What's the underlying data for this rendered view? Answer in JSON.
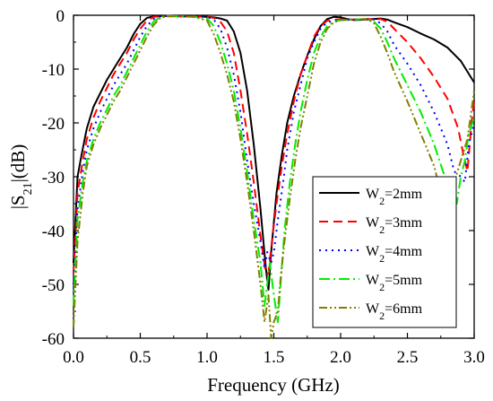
{
  "chart_data": {
    "type": "line",
    "title": "",
    "xlabel": "Frequency (GHz)",
    "ylabel": "|S21|(dB)",
    "ylabel_base": "|S",
    "ylabel_sub": "21",
    "ylabel_rest": "|(dB)",
    "xlim": [
      0.0,
      3.0
    ],
    "ylim": [
      -60,
      0
    ],
    "xticks": [
      0.0,
      0.5,
      1.0,
      1.5,
      2.0,
      2.5,
      3.0
    ],
    "xtick_labels": [
      "0.0",
      "0.5",
      "1.0",
      "1.5",
      "2.0",
      "2.5",
      "3.0"
    ],
    "yticks": [
      0,
      -10,
      -20,
      -30,
      -40,
      -50,
      -60
    ],
    "ytick_labels": [
      "0",
      "-10",
      "-20",
      "-30",
      "-40",
      "-50",
      "-60"
    ],
    "grid": false,
    "legend_position": "right",
    "series": [
      {
        "name": "W2=2mm",
        "legend_base": "W",
        "legend_sub": "2",
        "legend_rest": "=2mm",
        "color": "#000000",
        "dash": "",
        "points": [
          [
            0.0,
            -46
          ],
          [
            0.03,
            -30
          ],
          [
            0.06,
            -26
          ],
          [
            0.1,
            -21
          ],
          [
            0.15,
            -17
          ],
          [
            0.2,
            -14.5
          ],
          [
            0.25,
            -12
          ],
          [
            0.3,
            -10
          ],
          [
            0.35,
            -8
          ],
          [
            0.4,
            -6
          ],
          [
            0.45,
            -3.5
          ],
          [
            0.5,
            -1.6
          ],
          [
            0.55,
            -0.5
          ],
          [
            0.6,
            -0.2
          ],
          [
            0.7,
            -0.1
          ],
          [
            0.8,
            -0.2
          ],
          [
            0.9,
            -0.2
          ],
          [
            1.0,
            -0.3
          ],
          [
            1.05,
            -0.4
          ],
          [
            1.1,
            -0.6
          ],
          [
            1.15,
            -1
          ],
          [
            1.2,
            -3
          ],
          [
            1.25,
            -7
          ],
          [
            1.3,
            -14
          ],
          [
            1.35,
            -24
          ],
          [
            1.4,
            -36
          ],
          [
            1.44,
            -47
          ],
          [
            1.46,
            -51
          ],
          [
            1.48,
            -44
          ],
          [
            1.52,
            -33
          ],
          [
            1.56,
            -26
          ],
          [
            1.6,
            -20
          ],
          [
            1.65,
            -15
          ],
          [
            1.7,
            -11
          ],
          [
            1.75,
            -7.5
          ],
          [
            1.8,
            -4.5
          ],
          [
            1.85,
            -2
          ],
          [
            1.9,
            -0.7
          ],
          [
            1.95,
            -0.3
          ],
          [
            2.0,
            -0.4
          ],
          [
            2.05,
            -0.7
          ],
          [
            2.1,
            -0.9
          ],
          [
            2.2,
            -0.8
          ],
          [
            2.3,
            -0.6
          ],
          [
            2.35,
            -0.8
          ],
          [
            2.4,
            -1.3
          ],
          [
            2.5,
            -2.2
          ],
          [
            2.6,
            -3.4
          ],
          [
            2.7,
            -4.5
          ],
          [
            2.8,
            -6
          ],
          [
            2.9,
            -8.5
          ],
          [
            3.0,
            -12.5
          ]
        ]
      },
      {
        "name": "W2=3mm",
        "legend_base": "W",
        "legend_sub": "2",
        "legend_rest": "=3mm",
        "color": "#ff0000",
        "dash": "10,6",
        "points": [
          [
            0.0,
            -48
          ],
          [
            0.03,
            -33
          ],
          [
            0.07,
            -27
          ],
          [
            0.1,
            -23
          ],
          [
            0.15,
            -19
          ],
          [
            0.2,
            -16
          ],
          [
            0.25,
            -13.5
          ],
          [
            0.3,
            -11
          ],
          [
            0.35,
            -9
          ],
          [
            0.4,
            -7
          ],
          [
            0.45,
            -4.5
          ],
          [
            0.5,
            -2.5
          ],
          [
            0.55,
            -1
          ],
          [
            0.6,
            -0.3
          ],
          [
            0.7,
            -0.1
          ],
          [
            0.8,
            -0.2
          ],
          [
            0.9,
            -0.2
          ],
          [
            1.0,
            -0.3
          ],
          [
            1.05,
            -0.5
          ],
          [
            1.1,
            -1.2
          ],
          [
            1.15,
            -3
          ],
          [
            1.2,
            -7
          ],
          [
            1.25,
            -14
          ],
          [
            1.3,
            -22
          ],
          [
            1.35,
            -31
          ],
          [
            1.4,
            -41
          ],
          [
            1.44,
            -48
          ],
          [
            1.46,
            -48
          ],
          [
            1.49,
            -41
          ],
          [
            1.52,
            -35
          ],
          [
            1.56,
            -28
          ],
          [
            1.6,
            -22
          ],
          [
            1.65,
            -16
          ],
          [
            1.7,
            -11
          ],
          [
            1.75,
            -7.5
          ],
          [
            1.8,
            -4
          ],
          [
            1.85,
            -2
          ],
          [
            1.9,
            -1
          ],
          [
            1.95,
            -0.8
          ],
          [
            2.0,
            -0.8
          ],
          [
            2.1,
            -0.8
          ],
          [
            2.2,
            -0.7
          ],
          [
            2.3,
            -0.7
          ],
          [
            2.35,
            -1.2
          ],
          [
            2.4,
            -2.5
          ],
          [
            2.5,
            -5
          ],
          [
            2.6,
            -8
          ],
          [
            2.7,
            -11.5
          ],
          [
            2.8,
            -15.5
          ],
          [
            2.88,
            -21
          ],
          [
            2.92,
            -26
          ],
          [
            2.95,
            -29
          ],
          [
            2.98,
            -20
          ],
          [
            3.0,
            -16
          ]
        ]
      },
      {
        "name": "W2=4mm",
        "legend_base": "W",
        "legend_sub": "2",
        "legend_rest": "=4mm",
        "color": "#0000ff",
        "dash": "2,5",
        "points": [
          [
            0.0,
            -50
          ],
          [
            0.03,
            -36
          ],
          [
            0.07,
            -29
          ],
          [
            0.1,
            -25
          ],
          [
            0.15,
            -21
          ],
          [
            0.2,
            -18
          ],
          [
            0.25,
            -15.5
          ],
          [
            0.3,
            -13
          ],
          [
            0.35,
            -11
          ],
          [
            0.4,
            -9
          ],
          [
            0.45,
            -6.5
          ],
          [
            0.5,
            -4
          ],
          [
            0.55,
            -2
          ],
          [
            0.6,
            -0.7
          ],
          [
            0.65,
            -0.2
          ],
          [
            0.7,
            -0.1
          ],
          [
            0.8,
            -0.2
          ],
          [
            0.9,
            -0.2
          ],
          [
            1.0,
            -0.3
          ],
          [
            1.05,
            -0.8
          ],
          [
            1.1,
            -2.5
          ],
          [
            1.15,
            -6
          ],
          [
            1.2,
            -11
          ],
          [
            1.25,
            -18
          ],
          [
            1.3,
            -27
          ],
          [
            1.35,
            -35
          ],
          [
            1.4,
            -42
          ],
          [
            1.43,
            -47
          ],
          [
            1.45,
            -44
          ],
          [
            1.48,
            -46
          ],
          [
            1.5,
            -44
          ],
          [
            1.53,
            -38
          ],
          [
            1.57,
            -31
          ],
          [
            1.6,
            -25
          ],
          [
            1.65,
            -18
          ],
          [
            1.7,
            -13
          ],
          [
            1.75,
            -8
          ],
          [
            1.8,
            -5
          ],
          [
            1.85,
            -2.5
          ],
          [
            1.9,
            -1.3
          ],
          [
            1.95,
            -1
          ],
          [
            2.0,
            -0.9
          ],
          [
            2.1,
            -0.8
          ],
          [
            2.2,
            -0.7
          ],
          [
            2.25,
            -0.8
          ],
          [
            2.3,
            -1.5
          ],
          [
            2.35,
            -3
          ],
          [
            2.4,
            -5.5
          ],
          [
            2.5,
            -9
          ],
          [
            2.6,
            -13
          ],
          [
            2.7,
            -18
          ],
          [
            2.8,
            -24
          ],
          [
            2.85,
            -29
          ],
          [
            2.9,
            -30
          ],
          [
            2.93,
            -31
          ],
          [
            2.96,
            -24
          ],
          [
            3.0,
            -20
          ]
        ]
      },
      {
        "name": "W2=5mm",
        "legend_base": "W",
        "legend_sub": "2",
        "legend_rest": "=5mm",
        "color": "#00ee00",
        "dash": "12,4,2,4",
        "points": [
          [
            0.0,
            -54
          ],
          [
            0.03,
            -38
          ],
          [
            0.07,
            -31
          ],
          [
            0.1,
            -27
          ],
          [
            0.15,
            -23
          ],
          [
            0.2,
            -20
          ],
          [
            0.25,
            -17.5
          ],
          [
            0.3,
            -15
          ],
          [
            0.35,
            -13
          ],
          [
            0.4,
            -10.5
          ],
          [
            0.45,
            -8
          ],
          [
            0.5,
            -5.5
          ],
          [
            0.55,
            -3
          ],
          [
            0.6,
            -1.2
          ],
          [
            0.65,
            -0.3
          ],
          [
            0.7,
            -0.1
          ],
          [
            0.8,
            -0.2
          ],
          [
            0.9,
            -0.3
          ],
          [
            1.0,
            -0.6
          ],
          [
            1.05,
            -2
          ],
          [
            1.1,
            -5
          ],
          [
            1.15,
            -9
          ],
          [
            1.2,
            -14
          ],
          [
            1.25,
            -21
          ],
          [
            1.3,
            -29
          ],
          [
            1.35,
            -38
          ],
          [
            1.4,
            -46
          ],
          [
            1.43,
            -54
          ],
          [
            1.45,
            -50
          ],
          [
            1.47,
            -46
          ],
          [
            1.5,
            -52
          ],
          [
            1.53,
            -57
          ],
          [
            1.55,
            -50
          ],
          [
            1.58,
            -40
          ],
          [
            1.62,
            -31
          ],
          [
            1.66,
            -24
          ],
          [
            1.7,
            -18
          ],
          [
            1.75,
            -12
          ],
          [
            1.8,
            -7
          ],
          [
            1.85,
            -4
          ],
          [
            1.9,
            -2
          ],
          [
            1.95,
            -1.2
          ],
          [
            2.0,
            -0.9
          ],
          [
            2.1,
            -0.8
          ],
          [
            2.2,
            -0.7
          ],
          [
            2.25,
            -1.2
          ],
          [
            2.3,
            -2.5
          ],
          [
            2.35,
            -5
          ],
          [
            2.4,
            -8
          ],
          [
            2.5,
            -13
          ],
          [
            2.6,
            -18
          ],
          [
            2.7,
            -24
          ],
          [
            2.78,
            -30
          ],
          [
            2.83,
            -34
          ],
          [
            2.87,
            -35
          ],
          [
            2.9,
            -30
          ],
          [
            2.93,
            -27
          ],
          [
            2.96,
            -22
          ],
          [
            3.0,
            -19
          ]
        ]
      },
      {
        "name": "W2=6mm",
        "legend_base": "W",
        "legend_sub": "2",
        "legend_rest": "=6mm",
        "color": "#808000",
        "dash": "9,3,2,3,2,3",
        "points": [
          [
            0.0,
            -58
          ],
          [
            0.03,
            -42
          ],
          [
            0.07,
            -33
          ],
          [
            0.1,
            -28
          ],
          [
            0.15,
            -24
          ],
          [
            0.2,
            -21
          ],
          [
            0.25,
            -18.5
          ],
          [
            0.3,
            -16
          ],
          [
            0.35,
            -14
          ],
          [
            0.4,
            -11.5
          ],
          [
            0.45,
            -9
          ],
          [
            0.5,
            -6.5
          ],
          [
            0.55,
            -4
          ],
          [
            0.6,
            -1.8
          ],
          [
            0.65,
            -0.5
          ],
          [
            0.7,
            -0.2
          ],
          [
            0.8,
            -0.2
          ],
          [
            0.9,
            -0.3
          ],
          [
            1.0,
            -1
          ],
          [
            1.05,
            -3.5
          ],
          [
            1.1,
            -7
          ],
          [
            1.15,
            -11
          ],
          [
            1.2,
            -16
          ],
          [
            1.25,
            -23
          ],
          [
            1.3,
            -31
          ],
          [
            1.35,
            -40
          ],
          [
            1.4,
            -50
          ],
          [
            1.43,
            -57
          ],
          [
            1.46,
            -52
          ],
          [
            1.48,
            -60
          ],
          [
            1.5,
            -57
          ],
          [
            1.53,
            -55
          ],
          [
            1.55,
            -49
          ],
          [
            1.58,
            -42
          ],
          [
            1.62,
            -34
          ],
          [
            1.66,
            -27
          ],
          [
            1.7,
            -21
          ],
          [
            1.75,
            -15
          ],
          [
            1.8,
            -9
          ],
          [
            1.85,
            -5
          ],
          [
            1.9,
            -2.5
          ],
          [
            1.95,
            -1.3
          ],
          [
            2.0,
            -0.9
          ],
          [
            2.1,
            -0.8
          ],
          [
            2.2,
            -0.7
          ],
          [
            2.25,
            -1.5
          ],
          [
            2.3,
            -4
          ],
          [
            2.35,
            -7
          ],
          [
            2.4,
            -10.5
          ],
          [
            2.5,
            -16
          ],
          [
            2.6,
            -22
          ],
          [
            2.7,
            -28
          ],
          [
            2.75,
            -33
          ],
          [
            2.78,
            -37.5
          ],
          [
            2.8,
            -35
          ],
          [
            2.85,
            -31
          ],
          [
            2.9,
            -27
          ],
          [
            2.95,
            -23
          ],
          [
            3.0,
            -14
          ]
        ]
      }
    ]
  }
}
